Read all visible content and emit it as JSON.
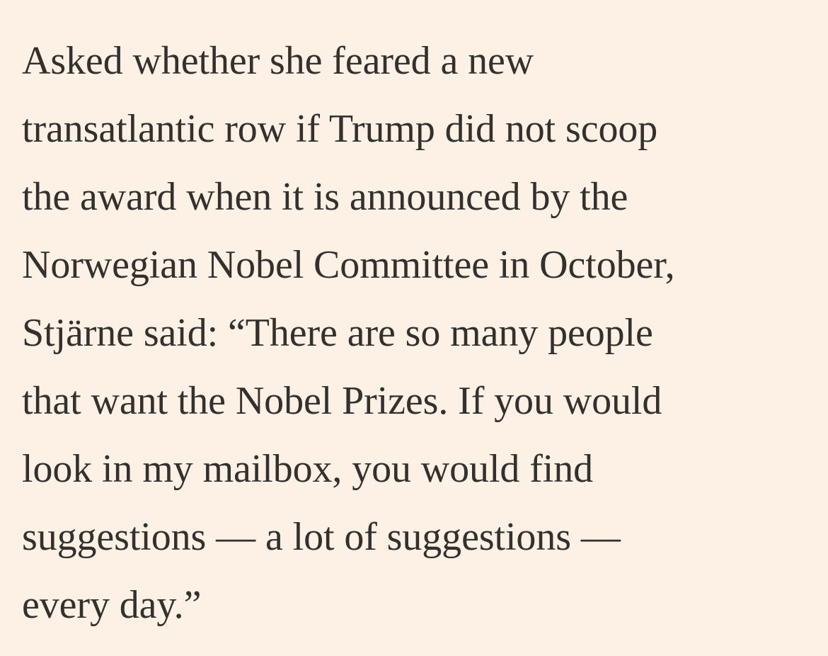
{
  "article": {
    "paragraph_lines": [
      "Asked whether she feared a new",
      "transatlantic row if Trump did not scoop",
      "the award when it is announced by the",
      "Norwegian Nobel Committee in October,",
      "Stjärne said: “There are so many people",
      "that want the Nobel Prizes. If you would",
      "look in my mailbox, you would find",
      "suggestions — a lot of suggestions —",
      "every day.”"
    ]
  },
  "colors": {
    "background": "#fdf1e5",
    "text": "#33302e"
  }
}
